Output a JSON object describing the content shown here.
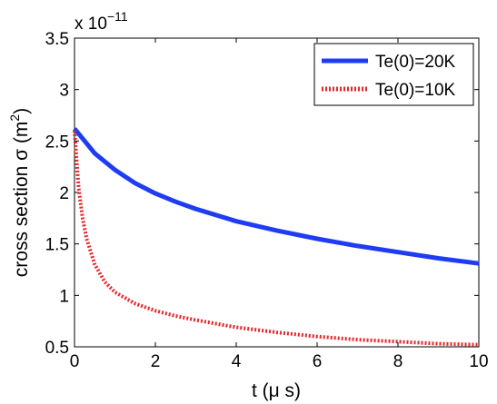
{
  "chart_data": {
    "type": "line",
    "xlabel": "t (μ s)",
    "ylabel": "cross section σ (m²)",
    "ylabel_base": "cross section σ (m",
    "ylabel_sup": "2",
    "ylabel_close": ")",
    "y_multiplier": "x 10",
    "y_multiplier_exp": "−11",
    "xlim": [
      0,
      10
    ],
    "ylim": [
      0.5,
      3.5
    ],
    "xticks": [
      0,
      2,
      4,
      6,
      8,
      10
    ],
    "xtick_labels": [
      "0",
      "2",
      "4",
      "6",
      "8",
      "10"
    ],
    "yticks": [
      0.5,
      1,
      1.5,
      2,
      2.5,
      3,
      3.5
    ],
    "ytick_labels": [
      "0.5",
      "1",
      "1.5",
      "2",
      "2.5",
      "3",
      "3.5"
    ],
    "grid": false,
    "legend_position": "top-right",
    "series": [
      {
        "name": "Te(0)=20K",
        "color": "#1f3cf5",
        "style": "solid",
        "x": [
          0,
          0.5,
          1,
          1.5,
          2,
          2.5,
          3,
          4,
          5,
          6,
          7,
          8,
          9,
          10
        ],
        "y": [
          2.62,
          2.38,
          2.22,
          2.09,
          1.99,
          1.91,
          1.84,
          1.72,
          1.63,
          1.55,
          1.48,
          1.42,
          1.36,
          1.31
        ]
      },
      {
        "name": "Te(0)=10K",
        "color": "#e8262a",
        "style": "dotted",
        "x": [
          0,
          0.1,
          0.2,
          0.3,
          0.5,
          0.75,
          1,
          1.5,
          2,
          2.5,
          3,
          4,
          5,
          6,
          7,
          8,
          9,
          10
        ],
        "y": [
          2.6,
          2.05,
          1.75,
          1.55,
          1.3,
          1.13,
          1.03,
          0.92,
          0.85,
          0.8,
          0.76,
          0.69,
          0.64,
          0.6,
          0.57,
          0.55,
          0.53,
          0.52
        ]
      }
    ]
  }
}
